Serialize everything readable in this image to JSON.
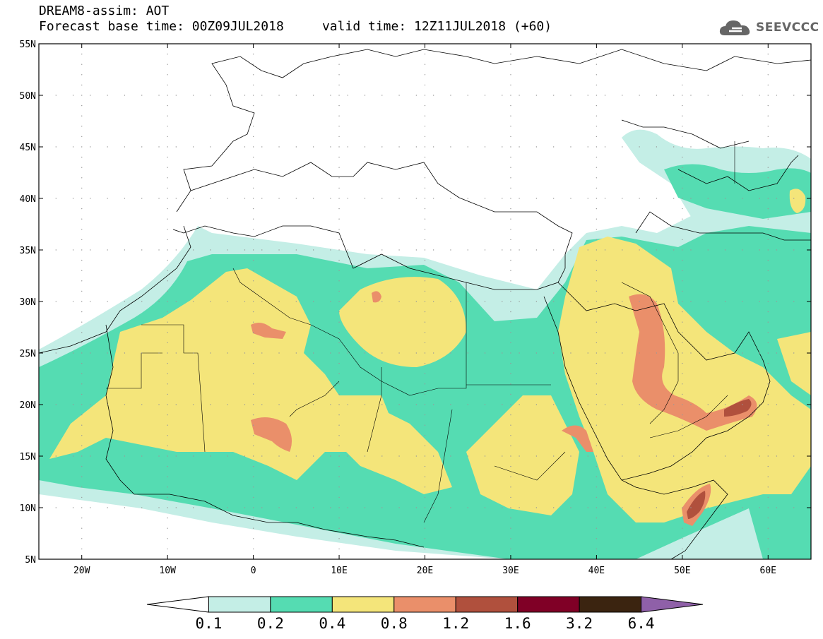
{
  "header": {
    "title_line1": "DREAM8-assim: AOT",
    "title_line2": "Forecast base time: 00Z09JUL2018     valid time: 12Z11JUL2018 (+60)",
    "logo_text": "SEEVCCC"
  },
  "map": {
    "lat_labels": [
      "55N",
      "50N",
      "45N",
      "40N",
      "35N",
      "30N",
      "25N",
      "20N",
      "15N",
      "10N",
      "5N"
    ],
    "lon_labels": [
      "20W",
      "10W",
      "0",
      "10E",
      "20E",
      "30E",
      "40E",
      "50E",
      "60E"
    ],
    "lat_range": [
      5,
      55
    ],
    "lon_range": [
      -25,
      65
    ]
  },
  "colorbar": {
    "levels": [
      "0.1",
      "0.2",
      "0.4",
      "0.8",
      "1.2",
      "1.6",
      "3.2",
      "6.4"
    ],
    "colors": [
      "#ffffff",
      "#c4eee6",
      "#55dcb2",
      "#f4e57a",
      "#ea8f6a",
      "#b0503d",
      "#800026",
      "#3b2410",
      "#8f60a8"
    ]
  }
}
